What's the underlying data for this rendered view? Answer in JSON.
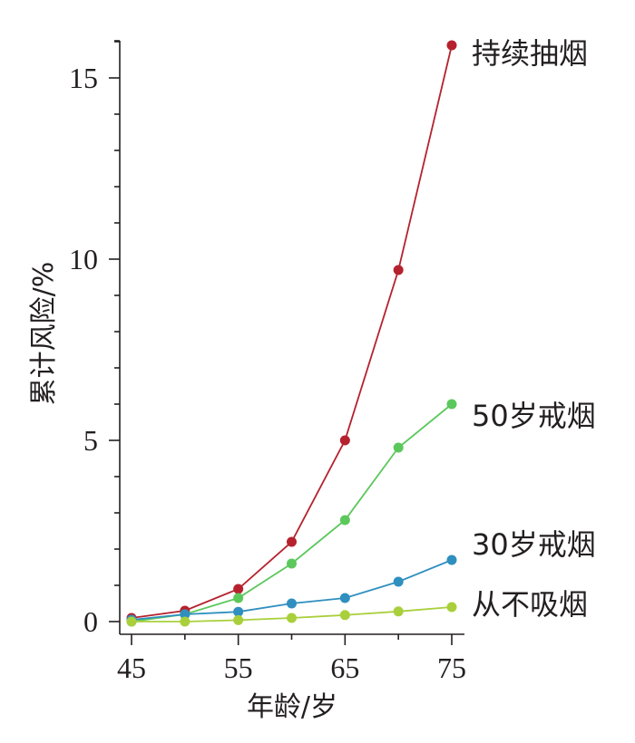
{
  "chart_data": {
    "type": "line",
    "title": "",
    "xlabel": "年龄/岁",
    "ylabel": "累计风险/%",
    "x": [
      45,
      50,
      55,
      60,
      65,
      70,
      75
    ],
    "xticks": [
      45,
      55,
      65,
      75
    ],
    "yticks": [
      0,
      5,
      10,
      15
    ],
    "xlim": [
      44,
      76
    ],
    "ylim": [
      -0.3,
      16
    ],
    "grid": false,
    "series": [
      {
        "name": "持续抽烟",
        "color": "#b5222e",
        "values": [
          0.1,
          0.3,
          0.9,
          2.2,
          5.0,
          9.7,
          15.9
        ]
      },
      {
        "name": "50岁戒烟",
        "color": "#5cc85c",
        "values": [
          0.0,
          0.2,
          0.65,
          1.6,
          2.8,
          4.8,
          6.0
        ]
      },
      {
        "name": "30岁戒烟",
        "color": "#2f8fbf",
        "values": [
          0.05,
          0.2,
          0.27,
          0.5,
          0.65,
          1.1,
          1.7
        ]
      },
      {
        "name": "从不吸烟",
        "color": "#a9cf3b",
        "values": [
          0.0,
          0.0,
          0.04,
          0.1,
          0.18,
          0.28,
          0.4
        ]
      }
    ]
  }
}
